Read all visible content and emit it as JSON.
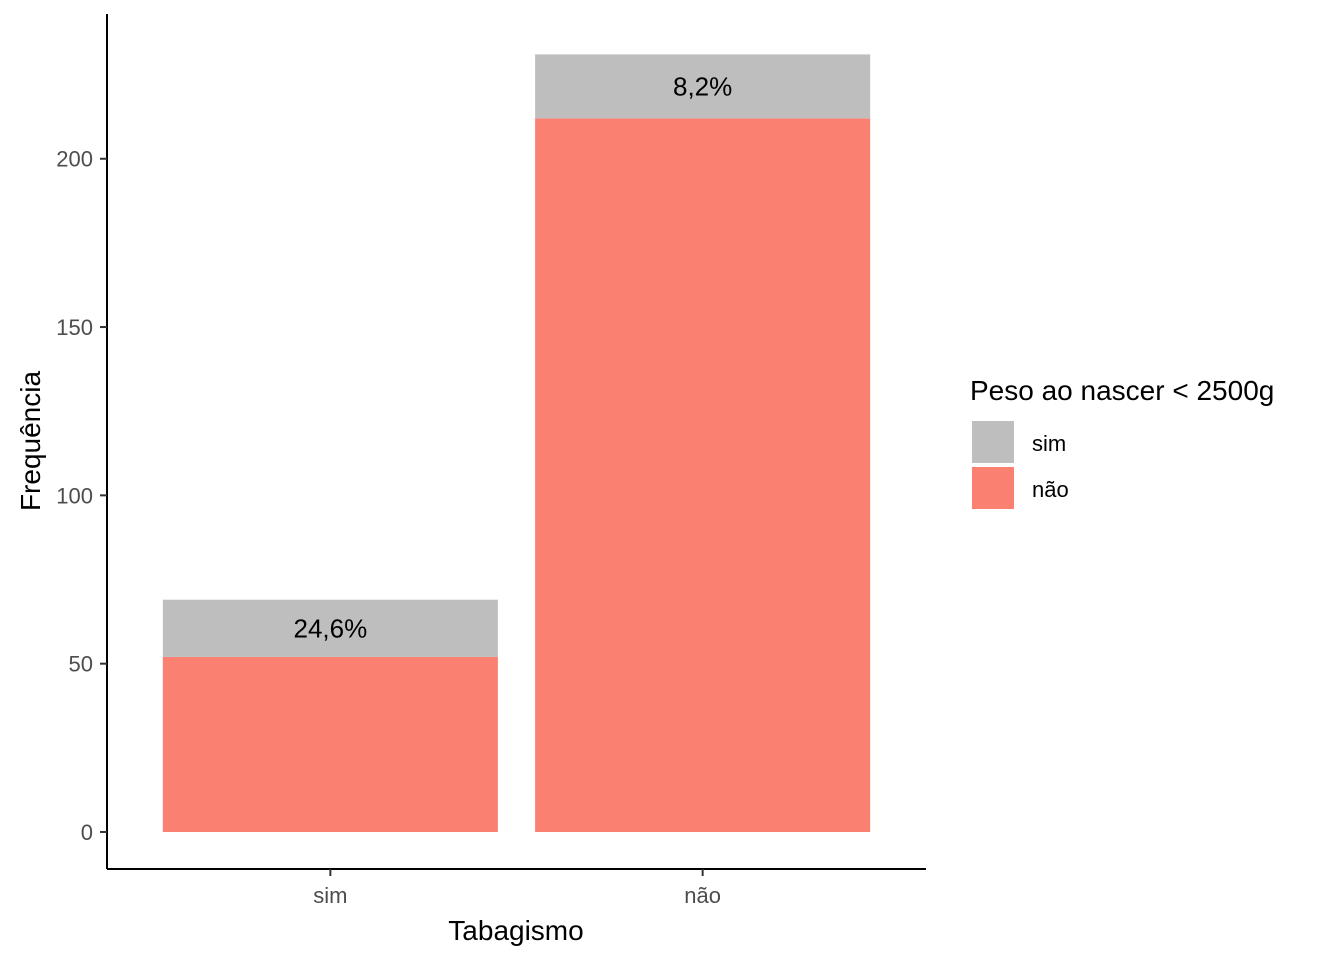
{
  "chart_data": {
    "type": "bar",
    "stacked": true,
    "categories": [
      "sim",
      "não"
    ],
    "series": [
      {
        "name": "sim",
        "color": "#BEBEBE",
        "values": [
          17,
          19
        ]
      },
      {
        "name": "não",
        "color": "#FA8072",
        "values": [
          52,
          212
        ]
      }
    ],
    "data_labels": [
      "24,6%",
      "8,2%"
    ],
    "xlabel": "Tabagismo",
    "ylabel": "Frequência",
    "yticks": [
      0,
      50,
      100,
      150,
      200
    ],
    "ylim": [
      -11,
      243
    ],
    "legend": {
      "title": "Peso ao nascer < 2500g",
      "position": "right"
    },
    "grid": false
  }
}
